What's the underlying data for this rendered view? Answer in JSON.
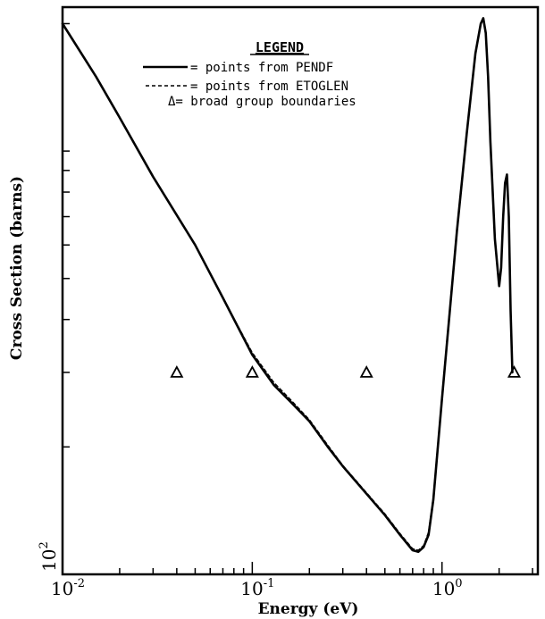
{
  "chart_data": {
    "type": "line",
    "title": "",
    "xlabel": "Energy (eV)",
    "ylabel": "Cross Section (barns)",
    "x_scale": "log",
    "xlim": [
      0.01,
      3.2
    ],
    "x_ticks": [
      {
        "value": 0.01,
        "base": "10",
        "exp": "-2"
      },
      {
        "value": 0.1,
        "base": "10",
        "exp": "-1"
      },
      {
        "value": 1,
        "base": "10",
        "exp": "0"
      }
    ],
    "y_scale": "log",
    "y_tick_label": {
      "base": "10",
      "exp": "2"
    },
    "grid": false,
    "legend": {
      "title": "LEGEND",
      "position": "top-center",
      "entries": [
        {
          "symbol": "solid-line",
          "text": "= points from PENDF"
        },
        {
          "symbol": "dashed-line",
          "text": "= points from ETOGLEN"
        },
        {
          "symbol": "triangle",
          "text": "Δ= broad group boundaries"
        }
      ]
    },
    "series": [
      {
        "name": "points from PENDF",
        "style": "solid",
        "x": [
          0.01,
          0.015,
          0.02,
          0.03,
          0.05,
          0.07,
          0.1,
          0.13,
          0.16,
          0.2,
          0.25,
          0.3,
          0.4,
          0.5,
          0.6,
          0.7,
          0.75,
          0.8,
          0.85,
          0.9,
          1.0,
          1.1,
          1.2,
          1.35,
          1.5,
          1.6,
          1.65,
          1.7,
          1.75,
          1.8,
          1.9,
          2.0,
          2.05,
          2.1,
          2.15,
          2.2,
          2.25,
          2.3,
          2.35
        ],
        "y": [
          2000,
          1500,
          1200,
          870,
          600,
          450,
          330,
          280,
          255,
          230,
          200,
          180,
          155,
          138,
          124,
          114,
          113,
          116,
          124,
          150,
          260,
          420,
          650,
          1100,
          1700,
          2000,
          2060,
          1900,
          1500,
          1050,
          620,
          480,
          530,
          700,
          840,
          880,
          700,
          420,
          300
        ]
      },
      {
        "name": "points from ETOGLEN",
        "style": "dashed",
        "x": [
          0.01,
          0.015,
          0.02,
          0.03,
          0.05,
          0.07,
          0.1,
          0.13,
          0.16,
          0.2,
          0.25,
          0.3,
          0.4,
          0.5,
          0.6,
          0.7,
          0.75,
          0.8,
          0.85,
          0.9,
          1.0,
          1.1,
          1.2,
          1.35,
          1.5,
          1.6,
          1.65,
          1.7,
          1.75,
          1.8,
          1.9,
          2.0,
          2.05,
          2.1,
          2.15,
          2.2,
          2.25,
          2.3,
          2.35
        ],
        "y": [
          2000,
          1500,
          1200,
          870,
          600,
          450,
          334,
          284,
          258,
          232,
          202,
          181,
          156,
          139,
          125,
          115,
          114,
          117,
          126,
          153,
          265,
          428,
          660,
          1110,
          1710,
          2000,
          2050,
          1890,
          1490,
          1045,
          618,
          478,
          528,
          698,
          838,
          878,
          698,
          418,
          300
        ]
      }
    ],
    "group_boundaries": {
      "x": [
        0.04,
        0.1,
        0.4,
        2.4
      ],
      "y": 300
    }
  }
}
